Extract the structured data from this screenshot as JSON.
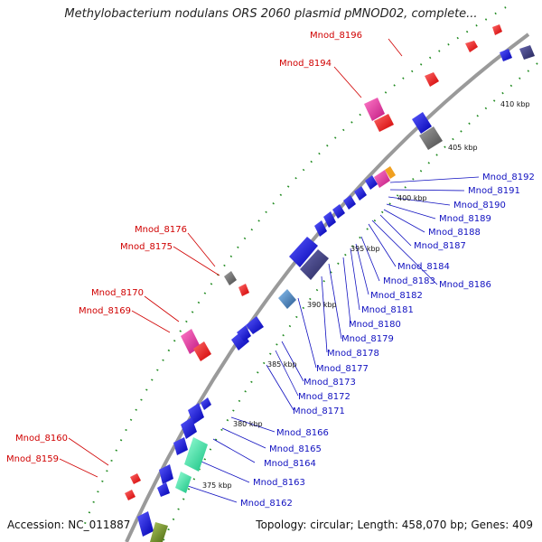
{
  "title": "Methylobacterium nodulans ORS 2060 plasmid pMNOD02, complete...",
  "footer": {
    "accession": "Accession: NC_011887",
    "summary": "Topology: circular; Length: 458,070 bp; Genes: 409"
  },
  "colors": {
    "backbone": "#9a9a9a",
    "forward_gene": "#0a0ad8",
    "reverse_gene": "#2a2ad0",
    "pseudo": "#ff1a1a",
    "magenta": "#e8299a",
    "gray_gene": "#6f6f6f",
    "teal": "#2ee8a8",
    "olive": "#7a9a2a",
    "steel": "#4a86c0",
    "dots": "#1f8a1f",
    "red_label": "#d00000",
    "blue_label": "#1010c0"
  },
  "ticks": [
    "410 kbp",
    "405 kbp",
    "400 kbp",
    "395 kbp",
    "390 kbp",
    "385 kbp",
    "380 kbp",
    "375 kbp"
  ],
  "red_labels": [
    "Mnod_8196",
    "Mnod_8194",
    "Mnod_8176",
    "Mnod_8175",
    "Mnod_8170",
    "Mnod_8169",
    "Mnod_8160",
    "Mnod_8159"
  ],
  "blue_labels": [
    "Mnod_8192",
    "Mnod_8191",
    "Mnod_8190",
    "Mnod_8189",
    "Mnod_8188",
    "Mnod_8187",
    "Mnod_8184",
    "Mnod_8186",
    "Mnod_8183",
    "Mnod_8182",
    "Mnod_8181",
    "Mnod_8180",
    "Mnod_8179",
    "Mnod_8178",
    "Mnod_8177",
    "Mnod_8173",
    "Mnod_8172",
    "Mnod_8171",
    "Mnod_8166",
    "Mnod_8165",
    "Mnod_8164",
    "Mnod_8163",
    "Mnod_8162"
  ]
}
